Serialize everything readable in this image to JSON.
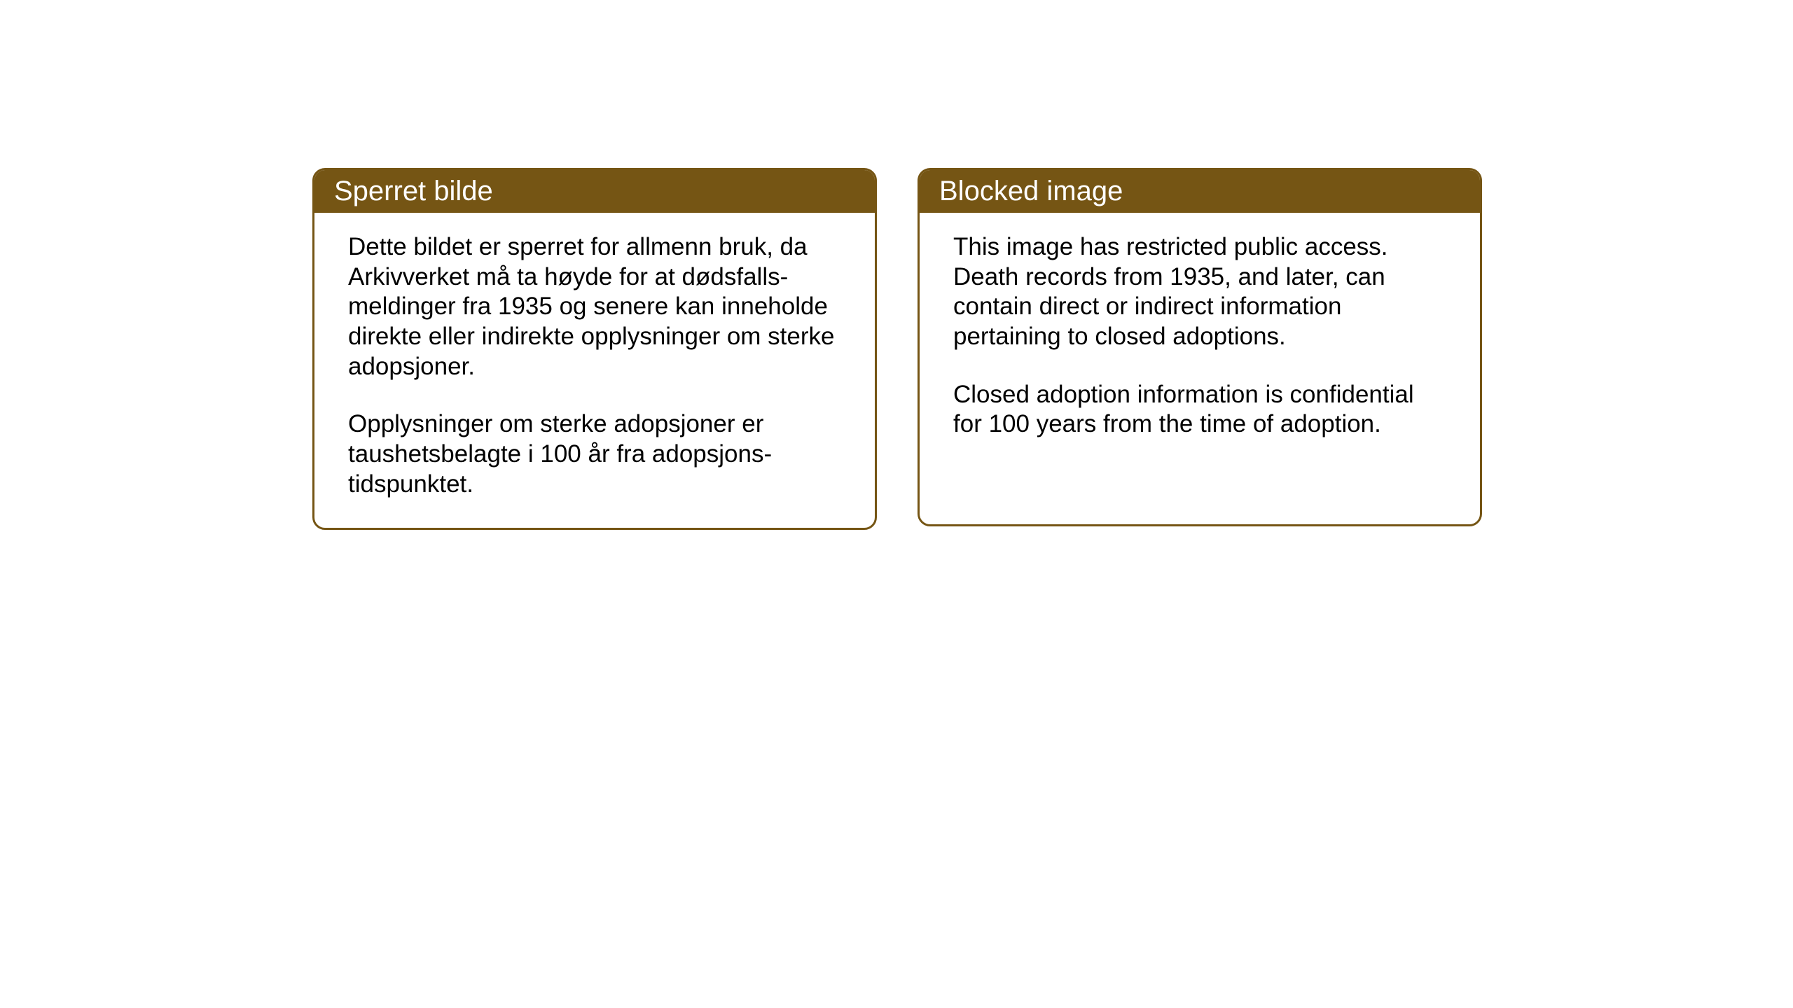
{
  "cards": {
    "norwegian": {
      "title": "Sperret bilde",
      "paragraph1": "Dette bildet er sperret for allmenn bruk, da Arkivverket må ta høyde for at dødsfalls-meldinger fra 1935 og senere kan inneholde direkte eller indirekte opplysninger om sterke adopsjoner.",
      "paragraph2": "Opplysninger om sterke adopsjoner er taushetsbelagte i 100 år fra adopsjons-tidspunktet."
    },
    "english": {
      "title": "Blocked image",
      "paragraph1": "This image has restricted public access. Death records from 1935, and later, can contain direct or indirect information pertaining to closed adoptions.",
      "paragraph2": "Closed adoption information is confidential for 100 years from the time of adoption."
    }
  },
  "styling": {
    "header_bg_color": "#755514",
    "header_text_color": "#ffffff",
    "border_color": "#755514",
    "body_bg_color": "#ffffff",
    "body_text_color": "#000000",
    "title_fontsize": 40,
    "body_fontsize": 35,
    "border_radius": 18,
    "border_width": 3
  }
}
